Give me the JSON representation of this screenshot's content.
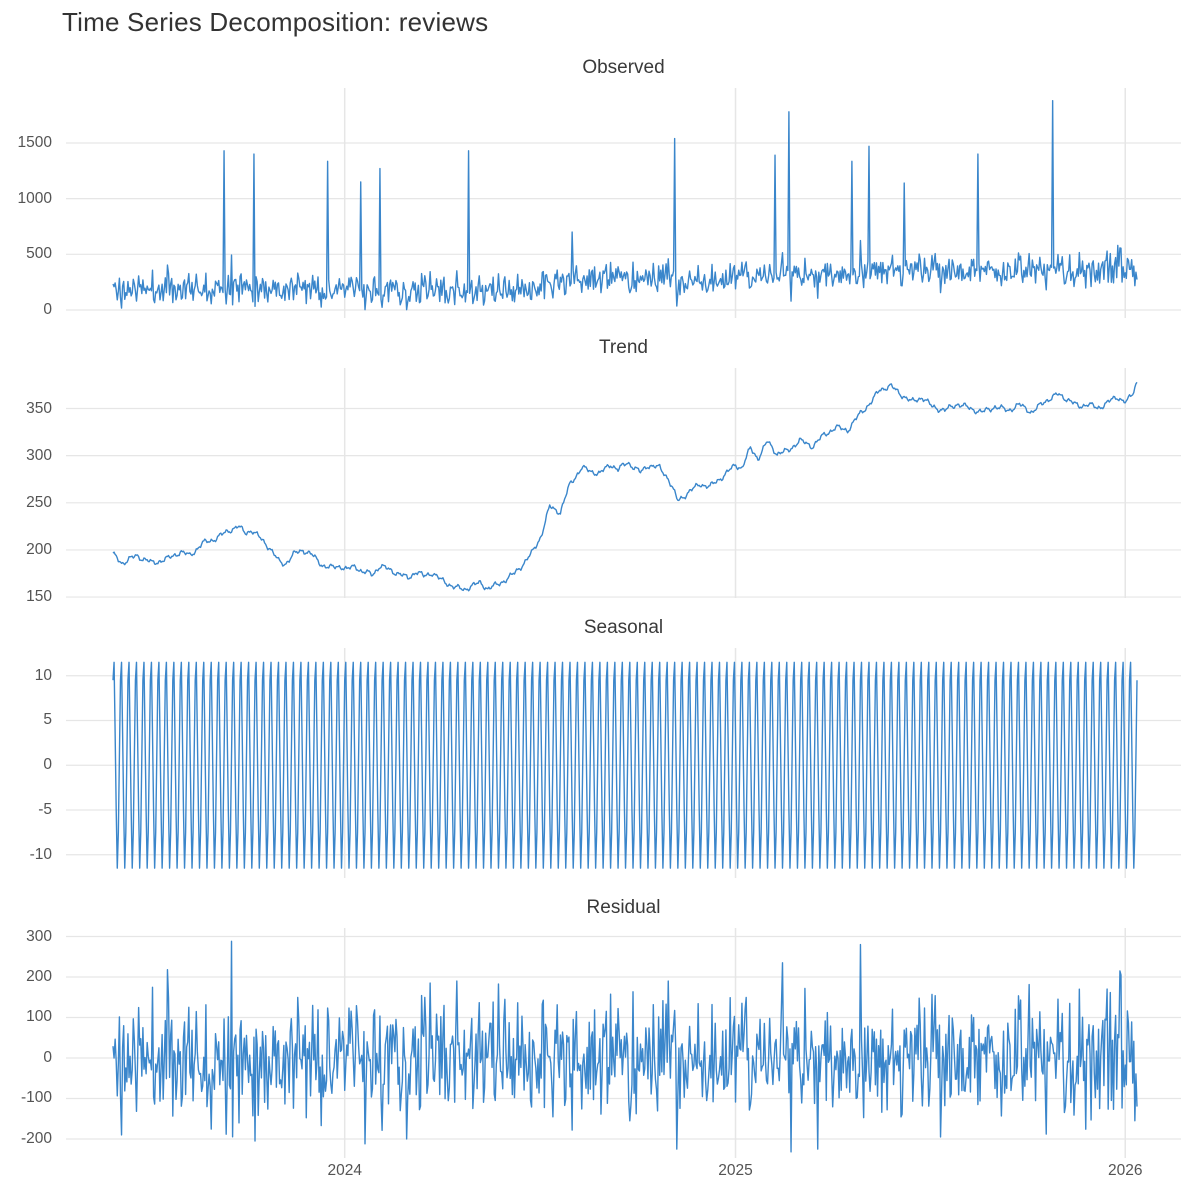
{
  "title": "Time Series Decomposition: reviews",
  "chart_data": {
    "type": "line",
    "title": "Time Series Decomposition: reviews",
    "line_color": "#3a86cb",
    "grid_color": "#e6e6e6",
    "background_color": "#ffffff",
    "legend": "none",
    "n_days": 960,
    "x_axis": {
      "tick_labels": [
        "2024",
        "2025",
        "2026"
      ],
      "tick_days": [
        217,
        583,
        948
      ],
      "range_note": "daily data, approx mid-2023 through early 2026"
    },
    "panels": [
      {
        "name": "Observed",
        "ylim": [
          -72,
          1994
        ],
        "yticks": [
          0,
          500,
          1000,
          1500
        ]
      },
      {
        "name": "Trend",
        "ylim": [
          149,
          393
        ],
        "yticks": [
          150,
          200,
          250,
          300,
          350
        ]
      },
      {
        "name": "Seasonal",
        "ylim": [
          -12.6,
          13.1
        ],
        "yticks": [
          -10,
          -5,
          0,
          5,
          10
        ]
      },
      {
        "name": "Residual",
        "ylim": [
          -247,
          321
        ],
        "yticks": [
          -200,
          -100,
          0,
          100,
          200,
          300
        ]
      }
    ],
    "trend_keypoints": [
      [
        0,
        195
      ],
      [
        9,
        186
      ],
      [
        22,
        194
      ],
      [
        37,
        186
      ],
      [
        52,
        191
      ],
      [
        63,
        198
      ],
      [
        72,
        194
      ],
      [
        84,
        207
      ],
      [
        94,
        211
      ],
      [
        102,
        216
      ],
      [
        111,
        222
      ],
      [
        117,
        225
      ],
      [
        124,
        218
      ],
      [
        130,
        221
      ],
      [
        140,
        210
      ],
      [
        147,
        202
      ],
      [
        155,
        188
      ],
      [
        161,
        185
      ],
      [
        170,
        196
      ],
      [
        178,
        200
      ],
      [
        186,
        195
      ],
      [
        196,
        184
      ],
      [
        203,
        181
      ],
      [
        213,
        183
      ],
      [
        219,
        179
      ],
      [
        227,
        183
      ],
      [
        233,
        177
      ],
      [
        243,
        174
      ],
      [
        250,
        183
      ],
      [
        259,
        179
      ],
      [
        269,
        174
      ],
      [
        276,
        170
      ],
      [
        284,
        177
      ],
      [
        291,
        172
      ],
      [
        299,
        176
      ],
      [
        306,
        169
      ],
      [
        314,
        164
      ],
      [
        321,
        160
      ],
      [
        329,
        158
      ],
      [
        336,
        162
      ],
      [
        344,
        165
      ],
      [
        351,
        159
      ],
      [
        360,
        163
      ],
      [
        367,
        168
      ],
      [
        376,
        175
      ],
      [
        384,
        185
      ],
      [
        392,
        196
      ],
      [
        401,
        215
      ],
      [
        409,
        246
      ],
      [
        419,
        240
      ],
      [
        428,
        270
      ],
      [
        439,
        287
      ],
      [
        449,
        283
      ],
      [
        456,
        281
      ],
      [
        466,
        291
      ],
      [
        473,
        285
      ],
      [
        482,
        293
      ],
      [
        494,
        282
      ],
      [
        501,
        290
      ],
      [
        512,
        287
      ],
      [
        520,
        276
      ],
      [
        529,
        252
      ],
      [
        540,
        262
      ],
      [
        550,
        270
      ],
      [
        559,
        267
      ],
      [
        570,
        277
      ],
      [
        583,
        290
      ],
      [
        589,
        287
      ],
      [
        597,
        308
      ],
      [
        604,
        297
      ],
      [
        613,
        315
      ],
      [
        622,
        302
      ],
      [
        632,
        305
      ],
      [
        643,
        316
      ],
      [
        655,
        310
      ],
      [
        666,
        322
      ],
      [
        677,
        330
      ],
      [
        688,
        327
      ],
      [
        700,
        345
      ],
      [
        711,
        358
      ],
      [
        718,
        370
      ],
      [
        728,
        374
      ],
      [
        737,
        366
      ],
      [
        748,
        357
      ],
      [
        758,
        362
      ],
      [
        767,
        352
      ],
      [
        779,
        348
      ],
      [
        791,
        355
      ],
      [
        803,
        350
      ],
      [
        814,
        346
      ],
      [
        826,
        352
      ],
      [
        838,
        348
      ],
      [
        849,
        354
      ],
      [
        861,
        346
      ],
      [
        873,
        358
      ],
      [
        885,
        365
      ],
      [
        894,
        360
      ],
      [
        904,
        352
      ],
      [
        913,
        355
      ],
      [
        922,
        350
      ],
      [
        932,
        357
      ],
      [
        941,
        362
      ],
      [
        949,
        357
      ],
      [
        955,
        365
      ],
      [
        959,
        379
      ]
    ],
    "seasonal_weekly_pattern": [
      9.5,
      11.5,
      3.5,
      -5.0,
      -11.5,
      -7.5,
      1.0
    ],
    "observed_spikes": [
      [
        104,
        1430
      ],
      [
        132,
        1400
      ],
      [
        201,
        1335
      ],
      [
        232,
        1150
      ],
      [
        250,
        1270
      ],
      [
        333,
        1430
      ],
      [
        430,
        700
      ],
      [
        526,
        1540
      ],
      [
        620,
        1390
      ],
      [
        633,
        1780
      ],
      [
        692,
        1335
      ],
      [
        708,
        1470
      ],
      [
        741,
        1140
      ],
      [
        810,
        1400
      ],
      [
        880,
        1880
      ],
      [
        941,
        580
      ]
    ],
    "residual_outliers": [
      [
        8,
        -190
      ],
      [
        51,
        218
      ],
      [
        111,
        288
      ],
      [
        236,
        -212
      ],
      [
        275,
        -200
      ],
      [
        297,
        185
      ],
      [
        322,
        190
      ],
      [
        430,
        -178
      ],
      [
        520,
        190
      ],
      [
        528,
        -225
      ],
      [
        627,
        235
      ],
      [
        635,
        -232
      ],
      [
        660,
        -225
      ],
      [
        700,
        280
      ],
      [
        775,
        -195
      ],
      [
        874,
        -188
      ],
      [
        905,
        170
      ],
      [
        943,
        215
      ],
      [
        957,
        -155
      ],
      [
        959,
        -120
      ]
    ],
    "residual_std": 70,
    "residual_clip": 205,
    "observed_floor": 3,
    "noise_seed": 11
  }
}
